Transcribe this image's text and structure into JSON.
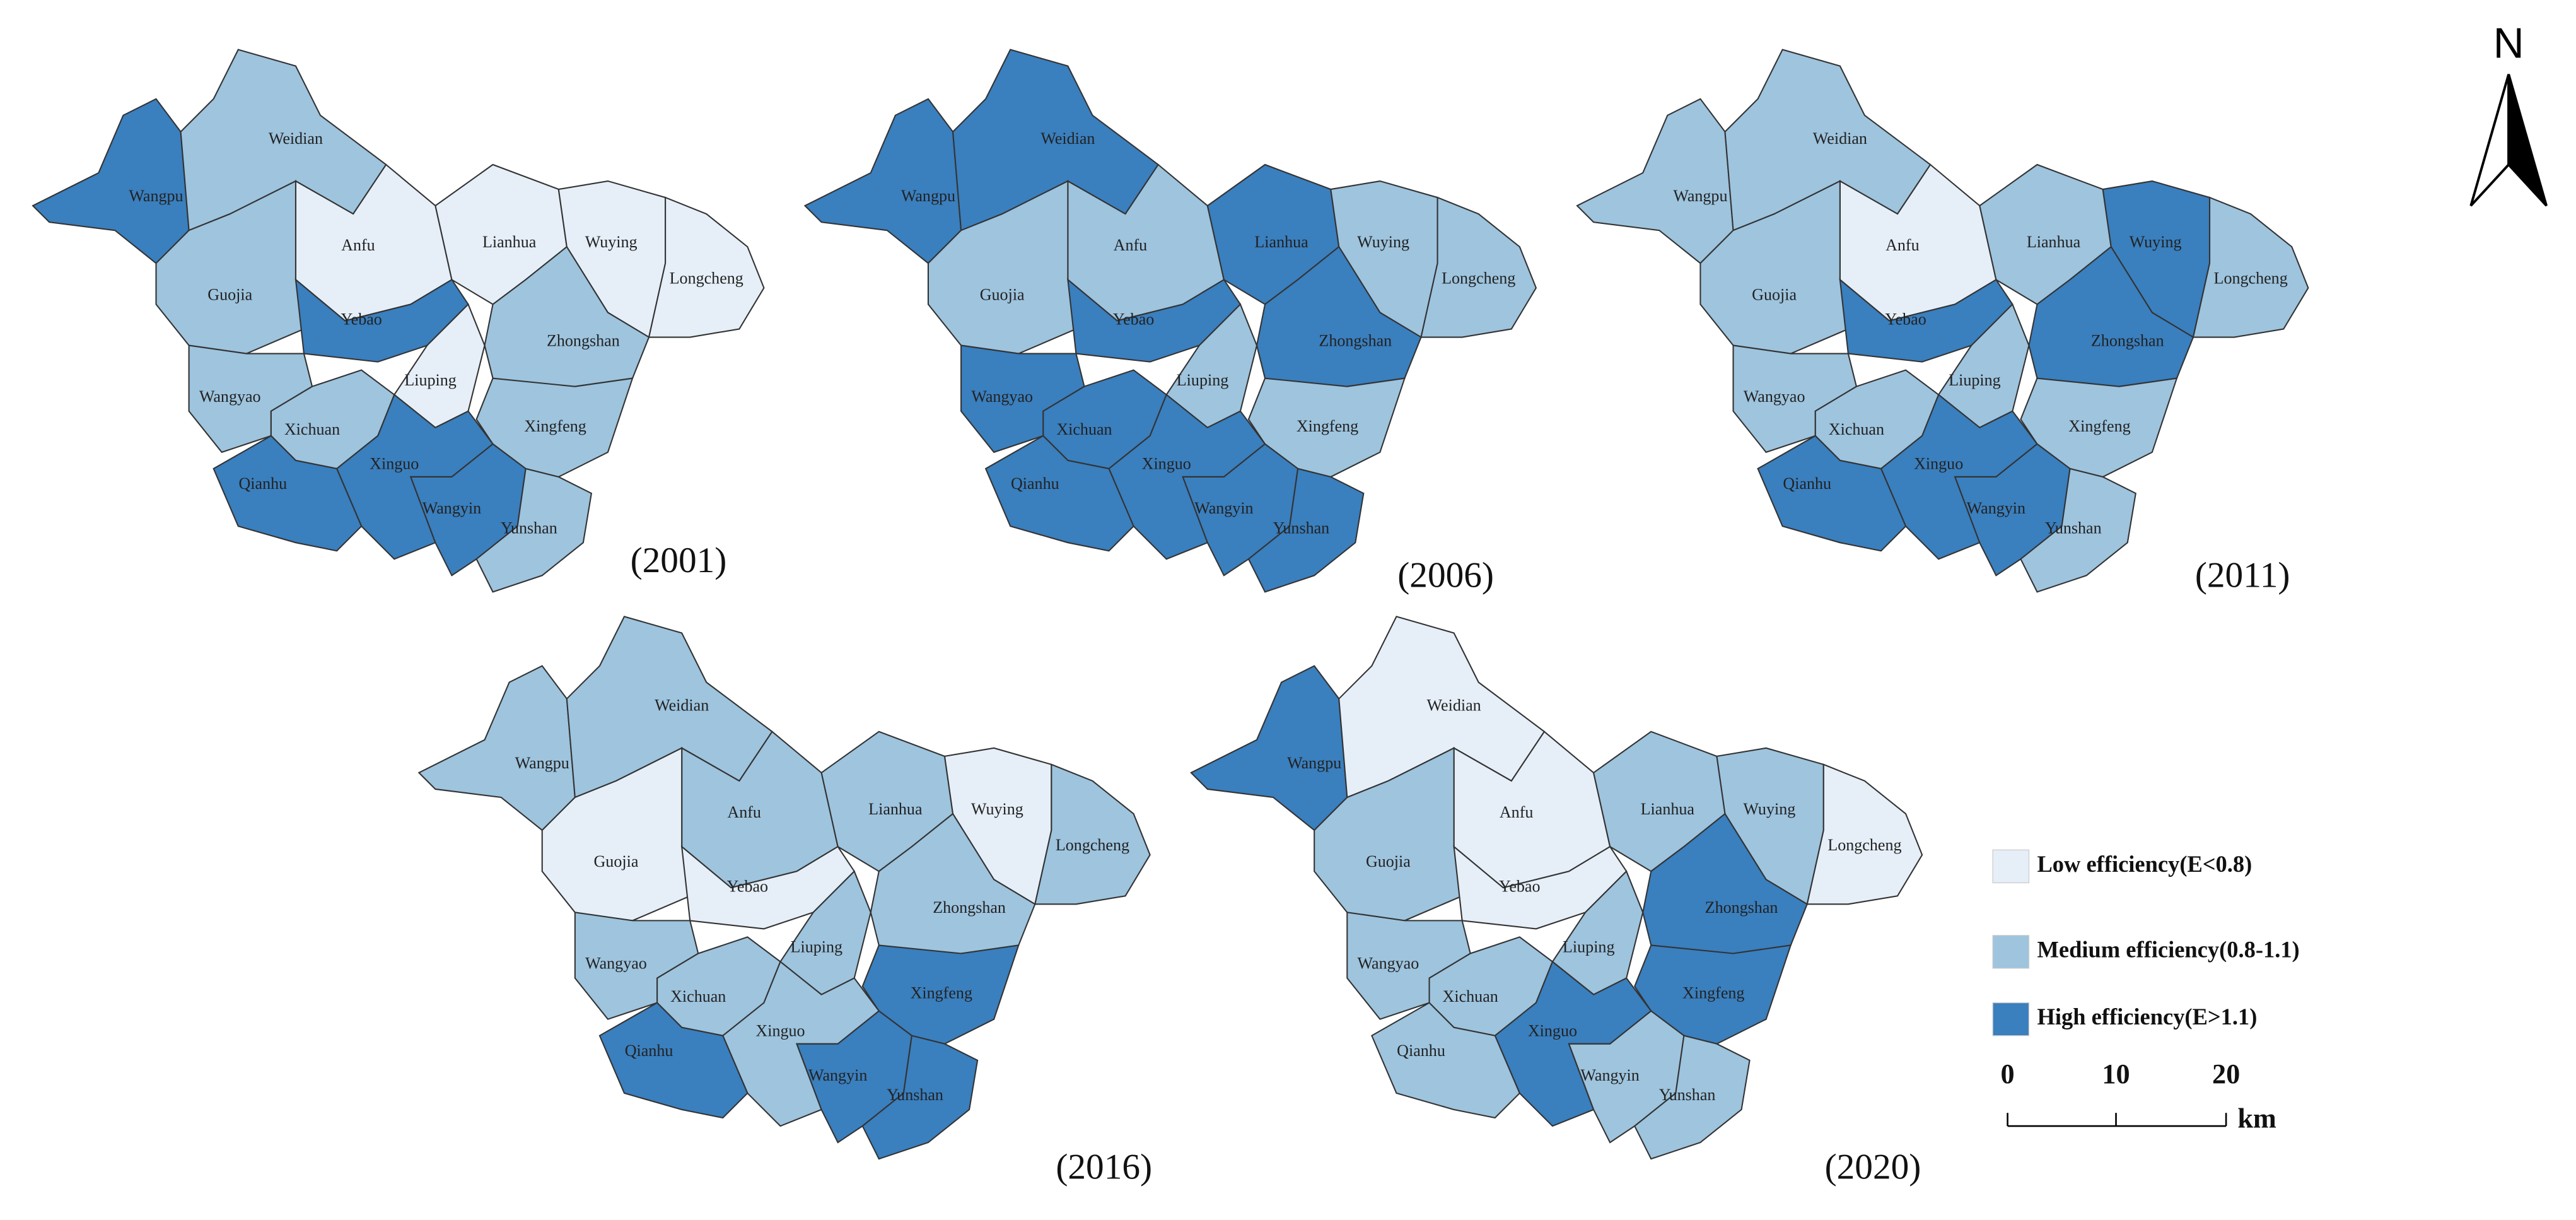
{
  "regions": [
    "Wangpu",
    "Weidian",
    "Anfu",
    "Lianhua",
    "Wuying",
    "Longcheng",
    "Guojia",
    "Yebao",
    "Zhongshan",
    "Liuping",
    "Wangyao",
    "Xichuan",
    "Xingfeng",
    "Xinguo",
    "Qianhu",
    "Wangyin",
    "Yunshan"
  ],
  "maps": [
    {
      "year": "(2001)",
      "fills": [
        "#3a7fbe",
        "#9ec4de",
        "#e6eff8",
        "#e6eff8",
        "#e6eff8",
        "#e6eff8",
        "#9ec4de",
        "#3a7fbe",
        "#9ec4de",
        "#e6eff8",
        "#9ec4de",
        "#9ec4de",
        "#9ec4de",
        "#3a7fbe",
        "#3a7fbe",
        "#3a7fbe",
        "#9ec4de"
      ]
    },
    {
      "year": "(2006)",
      "fills": [
        "#3a7fbe",
        "#3a7fbe",
        "#9ec4de",
        "#3a7fbe",
        "#9ec4de",
        "#9ec4de",
        "#9ec4de",
        "#3a7fbe",
        "#3a7fbe",
        "#9ec4de",
        "#3a7fbe",
        "#3a7fbe",
        "#9ec4de",
        "#3a7fbe",
        "#3a7fbe",
        "#3a7fbe",
        "#3a7fbe"
      ]
    },
    {
      "year": "(2011)",
      "fills": [
        "#9ec4de",
        "#9ec4de",
        "#e6eff8",
        "#9ec4de",
        "#3a7fbe",
        "#9ec4de",
        "#9ec4de",
        "#3a7fbe",
        "#3a7fbe",
        "#9ec4de",
        "#9ec4de",
        "#9ec4de",
        "#9ec4de",
        "#3a7fbe",
        "#3a7fbe",
        "#3a7fbe",
        "#9ec4de"
      ]
    },
    {
      "year": "(2016)",
      "fills": [
        "#9ec4de",
        "#9ec4de",
        "#9ec4de",
        "#9ec4de",
        "#e6eff8",
        "#9ec4de",
        "#e6eff8",
        "#e6eff8",
        "#9ec4de",
        "#9ec4de",
        "#9ec4de",
        "#9ec4de",
        "#3a7fbe",
        "#9ec4de",
        "#3a7fbe",
        "#3a7fbe",
        "#3a7fbe"
      ]
    },
    {
      "year": "(2020)",
      "fills": [
        "#3a7fbe",
        "#e6eff8",
        "#e6eff8",
        "#9ec4de",
        "#9ec4de",
        "#e6eff8",
        "#9ec4de",
        "#e6eff8",
        "#3a7fbe",
        "#9ec4de",
        "#9ec4de",
        "#9ec4de",
        "#3a7fbe",
        "#3a7fbe",
        "#9ec4de",
        "#9ec4de",
        "#9ec4de"
      ]
    }
  ],
  "legend": [
    {
      "label": "Low efficiency(E<0.8)",
      "color": "#e6eff8"
    },
    {
      "label": "Medium efficiency(0.8-1.1)",
      "color": "#9ec4de"
    },
    {
      "label": "High efficiency(E>1.1)",
      "color": "#3a7fbe"
    }
  ],
  "scale_bar": {
    "ticks": [
      "0",
      "10",
      "20"
    ],
    "unit": "km"
  },
  "north": "N"
}
